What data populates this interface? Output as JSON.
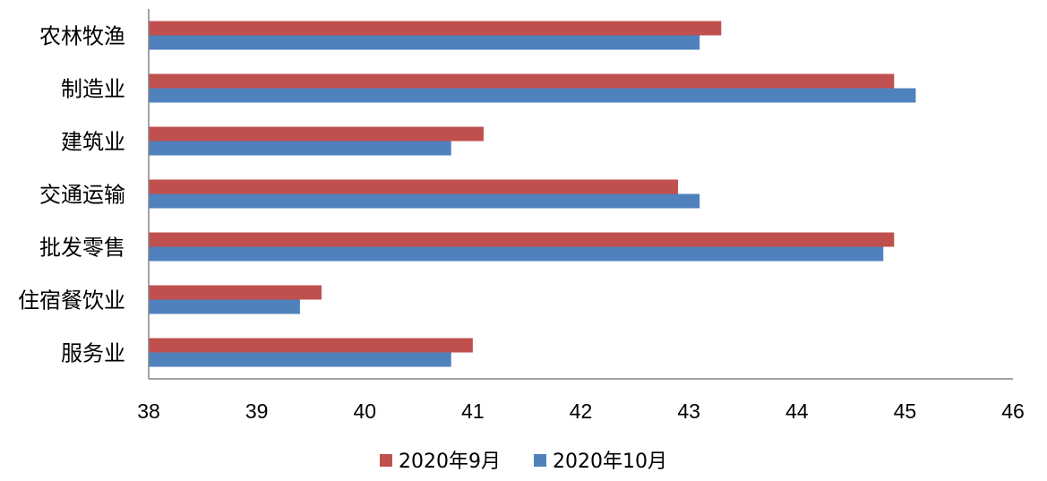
{
  "chart_data": {
    "type": "bar",
    "orientation": "horizontal",
    "categories": [
      "农林牧渔",
      "制造业",
      "建筑业",
      "交通运输",
      "批发零售",
      "住宿餐饮业",
      "服务业"
    ],
    "series": [
      {
        "name": "2020年9月",
        "color": "#C0504D",
        "values": [
          43.3,
          44.9,
          41.1,
          42.9,
          44.9,
          39.6,
          41.0
        ]
      },
      {
        "name": "2020年10月",
        "color": "#4F81BD",
        "values": [
          43.1,
          45.1,
          40.8,
          43.1,
          44.8,
          39.4,
          40.8
        ]
      }
    ],
    "xlim": [
      38,
      46
    ],
    "xticks": [
      "38",
      "39",
      "40",
      "41",
      "42",
      "43",
      "44",
      "45",
      "46"
    ],
    "grid": false,
    "legend_position": "bottom"
  }
}
